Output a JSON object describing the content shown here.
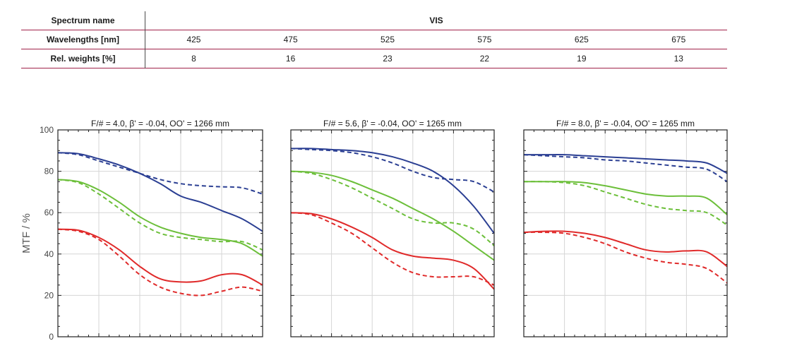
{
  "spectrum": {
    "name_label": "Spectrum name",
    "name_value": "VIS",
    "wavelength_label": "Wavelengths [nm]",
    "wavelengths": [
      "425",
      "475",
      "525",
      "575",
      "625",
      "675"
    ],
    "weight_label": "Rel. weights [%]",
    "weights": [
      "8",
      "16",
      "23",
      "22",
      "19",
      "13"
    ]
  },
  "colors": {
    "blue": "#2b3f93",
    "green": "#6cbf3a",
    "red": "#e02a2a"
  },
  "chart_data": [
    {
      "type": "line",
      "title": "F/# = 4.0, β' = -0.04, OO' = 1266 mm",
      "ylabel": "MTF / %",
      "xlim": [
        0,
        1
      ],
      "ylim": [
        0,
        100
      ],
      "yticks": [
        0,
        20,
        40,
        60,
        80,
        100
      ],
      "grid": true,
      "series": [
        {
          "color": "blue",
          "style": "solid",
          "x": [
            0,
            0.1,
            0.2,
            0.3,
            0.4,
            0.5,
            0.6,
            0.7,
            0.8,
            0.9,
            1.0
          ],
          "y": [
            89,
            88.5,
            86,
            83,
            79,
            74,
            68,
            65,
            61,
            57,
            51
          ]
        },
        {
          "color": "blue",
          "style": "dashed",
          "x": [
            0,
            0.1,
            0.2,
            0.3,
            0.4,
            0.5,
            0.6,
            0.7,
            0.8,
            0.9,
            1.0
          ],
          "y": [
            89,
            88,
            85,
            82,
            79,
            76,
            74,
            73,
            72.5,
            72,
            69
          ]
        },
        {
          "color": "green",
          "style": "solid",
          "x": [
            0,
            0.1,
            0.2,
            0.3,
            0.4,
            0.5,
            0.6,
            0.7,
            0.8,
            0.9,
            1.0
          ],
          "y": [
            76,
            75,
            71,
            65,
            58,
            53,
            50,
            48,
            47,
            45,
            39
          ]
        },
        {
          "color": "green",
          "style": "dashed",
          "x": [
            0,
            0.1,
            0.2,
            0.3,
            0.4,
            0.5,
            0.6,
            0.7,
            0.8,
            0.9,
            1.0
          ],
          "y": [
            76,
            74.5,
            69,
            62,
            55,
            50,
            48,
            47,
            46,
            46,
            42
          ]
        },
        {
          "color": "red",
          "style": "solid",
          "x": [
            0,
            0.1,
            0.2,
            0.3,
            0.4,
            0.5,
            0.6,
            0.7,
            0.8,
            0.9,
            1.0
          ],
          "y": [
            52,
            51.5,
            48,
            42,
            34,
            28,
            26.5,
            27,
            30,
            30,
            25
          ]
        },
        {
          "color": "red",
          "style": "dashed",
          "x": [
            0,
            0.1,
            0.2,
            0.3,
            0.4,
            0.5,
            0.6,
            0.7,
            0.8,
            0.9,
            1.0
          ],
          "y": [
            52,
            51,
            47,
            39,
            30,
            24,
            21,
            20,
            22,
            24,
            22
          ]
        }
      ]
    },
    {
      "type": "line",
      "title": "F/# = 5.6, β' = -0.04, OO' = 1265 mm",
      "xlim": [
        0,
        1
      ],
      "ylim": [
        0,
        100
      ],
      "grid": true,
      "series": [
        {
          "color": "blue",
          "style": "solid",
          "x": [
            0,
            0.1,
            0.2,
            0.3,
            0.4,
            0.5,
            0.6,
            0.7,
            0.8,
            0.9,
            1.0
          ],
          "y": [
            91,
            91,
            90.5,
            90,
            89,
            87,
            84,
            80,
            73,
            63,
            50
          ]
        },
        {
          "color": "blue",
          "style": "dashed",
          "x": [
            0,
            0.1,
            0.2,
            0.3,
            0.4,
            0.5,
            0.6,
            0.7,
            0.8,
            0.9,
            1.0
          ],
          "y": [
            91,
            90.5,
            90,
            89,
            87,
            84,
            80,
            77,
            76,
            75,
            70
          ]
        },
        {
          "color": "green",
          "style": "solid",
          "x": [
            0,
            0.1,
            0.2,
            0.3,
            0.4,
            0.5,
            0.6,
            0.7,
            0.8,
            0.9,
            1.0
          ],
          "y": [
            80,
            79.5,
            78,
            75,
            71,
            67,
            62,
            57,
            51,
            44,
            37
          ]
        },
        {
          "color": "green",
          "style": "dashed",
          "x": [
            0,
            0.1,
            0.2,
            0.3,
            0.4,
            0.5,
            0.6,
            0.7,
            0.8,
            0.9,
            1.0
          ],
          "y": [
            80,
            79,
            76,
            72,
            67,
            62,
            57,
            55,
            55,
            52,
            44
          ]
        },
        {
          "color": "red",
          "style": "solid",
          "x": [
            0,
            0.1,
            0.2,
            0.3,
            0.4,
            0.5,
            0.6,
            0.7,
            0.8,
            0.9,
            1.0
          ],
          "y": [
            60,
            59.5,
            57,
            53,
            48,
            42,
            39,
            38,
            37,
            33,
            23
          ]
        },
        {
          "color": "red",
          "style": "dashed",
          "x": [
            0,
            0.1,
            0.2,
            0.3,
            0.4,
            0.5,
            0.6,
            0.7,
            0.8,
            0.9,
            1.0
          ],
          "y": [
            60,
            59,
            55,
            50,
            43,
            36,
            31,
            29,
            29,
            29,
            25
          ]
        }
      ]
    },
    {
      "type": "line",
      "title": "F/# = 8.0, β' = -0.04, OO' = 1265 mm",
      "xlim": [
        0,
        1
      ],
      "ylim": [
        0,
        100
      ],
      "grid": true,
      "series": [
        {
          "color": "blue",
          "style": "solid",
          "x": [
            0,
            0.1,
            0.2,
            0.3,
            0.4,
            0.5,
            0.6,
            0.7,
            0.8,
            0.9,
            1.0
          ],
          "y": [
            88,
            88,
            88,
            87.5,
            87,
            86.5,
            86,
            85.5,
            85,
            84,
            79
          ]
        },
        {
          "color": "blue",
          "style": "dashed",
          "x": [
            0,
            0.1,
            0.2,
            0.3,
            0.4,
            0.5,
            0.6,
            0.7,
            0.8,
            0.9,
            1.0
          ],
          "y": [
            88,
            87.5,
            87,
            86.5,
            85.5,
            85,
            84,
            83,
            82,
            81,
            75
          ]
        },
        {
          "color": "green",
          "style": "solid",
          "x": [
            0,
            0.1,
            0.2,
            0.3,
            0.4,
            0.5,
            0.6,
            0.7,
            0.8,
            0.9,
            1.0
          ],
          "y": [
            75,
            75,
            75,
            74.5,
            73,
            71,
            69,
            68,
            68,
            67,
            59
          ]
        },
        {
          "color": "green",
          "style": "dashed",
          "x": [
            0,
            0.1,
            0.2,
            0.3,
            0.4,
            0.5,
            0.6,
            0.7,
            0.8,
            0.9,
            1.0
          ],
          "y": [
            75,
            75,
            74.5,
            73,
            70,
            67,
            64,
            62,
            61,
            60,
            54
          ]
        },
        {
          "color": "red",
          "style": "solid",
          "x": [
            0,
            0.1,
            0.2,
            0.3,
            0.4,
            0.5,
            0.6,
            0.7,
            0.8,
            0.9,
            1.0
          ],
          "y": [
            50.5,
            51,
            51,
            50,
            48,
            45,
            42,
            41,
            41.5,
            41,
            34
          ]
        },
        {
          "color": "red",
          "style": "dashed",
          "x": [
            0,
            0.1,
            0.2,
            0.3,
            0.4,
            0.5,
            0.6,
            0.7,
            0.8,
            0.9,
            1.0
          ],
          "y": [
            50.5,
            50.5,
            50,
            48,
            45,
            41,
            38,
            36,
            35,
            33,
            26
          ]
        }
      ]
    }
  ]
}
